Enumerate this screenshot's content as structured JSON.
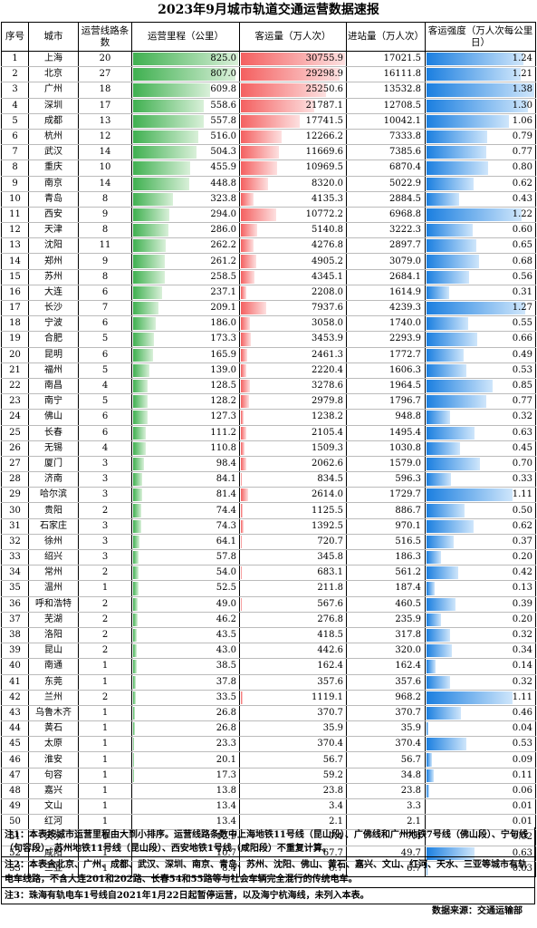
{
  "title": "2023年9月城市轨道交通运营数据速报",
  "headers": {
    "no": "序号",
    "city": "城市",
    "lines": "运营线路条数",
    "km": "运营里程（公里）",
    "passengers": "客运量（万人次）",
    "entries": "进站量（万人次）",
    "intensity": "客运强度（万人次每公里日）"
  },
  "colors": {
    "mileage_bar": "#3fb050",
    "passenger_bar": "#f46060",
    "intensity_bar": "#1b7fe0"
  },
  "rows": [
    [
      "1",
      "上海",
      "20",
      "825.0",
      "30755.9",
      "17021.5",
      "1.24"
    ],
    [
      "2",
      "北京",
      "27",
      "807.0",
      "29298.9",
      "16111.8",
      "1.21"
    ],
    [
      "3",
      "广州",
      "18",
      "609.8",
      "25250.6",
      "13532.8",
      "1.38"
    ],
    [
      "4",
      "深圳",
      "17",
      "558.6",
      "21787.1",
      "12708.5",
      "1.30"
    ],
    [
      "5",
      "成都",
      "13",
      "557.8",
      "17741.5",
      "10042.1",
      "1.06"
    ],
    [
      "6",
      "杭州",
      "12",
      "516.0",
      "12266.2",
      "7333.8",
      "0.79"
    ],
    [
      "7",
      "武汉",
      "14",
      "504.3",
      "11669.6",
      "7385.6",
      "0.77"
    ],
    [
      "8",
      "重庆",
      "10",
      "455.9",
      "10969.5",
      "6870.4",
      "0.80"
    ],
    [
      "9",
      "南京",
      "14",
      "448.8",
      "8320.0",
      "5022.9",
      "0.62"
    ],
    [
      "10",
      "青岛",
      "8",
      "323.8",
      "4135.3",
      "2884.5",
      "0.43"
    ],
    [
      "11",
      "西安",
      "9",
      "294.0",
      "10772.2",
      "6968.8",
      "1.22"
    ],
    [
      "12",
      "天津",
      "8",
      "286.0",
      "5140.8",
      "3222.3",
      "0.60"
    ],
    [
      "13",
      "沈阳",
      "11",
      "262.2",
      "4276.8",
      "2897.7",
      "0.65"
    ],
    [
      "14",
      "郑州",
      "9",
      "261.2",
      "4905.2",
      "3079.0",
      "0.68"
    ],
    [
      "15",
      "苏州",
      "8",
      "258.5",
      "4345.1",
      "2684.1",
      "0.56"
    ],
    [
      "16",
      "大连",
      "6",
      "237.1",
      "2208.0",
      "1614.9",
      "0.31"
    ],
    [
      "17",
      "长沙",
      "7",
      "209.1",
      "7937.6",
      "4239.3",
      "1.27"
    ],
    [
      "18",
      "宁波",
      "6",
      "186.0",
      "3058.0",
      "1740.0",
      "0.55"
    ],
    [
      "19",
      "合肥",
      "5",
      "173.3",
      "3453.9",
      "2293.9",
      "0.66"
    ],
    [
      "20",
      "昆明",
      "6",
      "165.9",
      "2461.3",
      "1772.7",
      "0.49"
    ],
    [
      "21",
      "福州",
      "5",
      "139.0",
      "2220.4",
      "1606.3",
      "0.53"
    ],
    [
      "22",
      "南昌",
      "4",
      "128.5",
      "3278.6",
      "1964.5",
      "0.85"
    ],
    [
      "23",
      "南宁",
      "5",
      "128.2",
      "2979.8",
      "1796.7",
      "0.77"
    ],
    [
      "24",
      "佛山",
      "6",
      "127.3",
      "1238.2",
      "948.8",
      "0.32"
    ],
    [
      "25",
      "长春",
      "6",
      "111.2",
      "2105.4",
      "1495.4",
      "0.63"
    ],
    [
      "26",
      "无锡",
      "4",
      "110.8",
      "1509.3",
      "1030.8",
      "0.45"
    ],
    [
      "27",
      "厦门",
      "3",
      "98.4",
      "2062.6",
      "1579.0",
      "0.70"
    ],
    [
      "28",
      "济南",
      "3",
      "84.1",
      "834.5",
      "596.3",
      "0.33"
    ],
    [
      "29",
      "哈尔滨",
      "3",
      "81.4",
      "2614.0",
      "1729.7",
      "1.11"
    ],
    [
      "30",
      "贵阳",
      "2",
      "74.4",
      "1125.5",
      "886.7",
      "0.50"
    ],
    [
      "31",
      "石家庄",
      "3",
      "74.3",
      "1392.5",
      "970.1",
      "0.62"
    ],
    [
      "32",
      "徐州",
      "3",
      "64.1",
      "720.7",
      "516.5",
      "0.37"
    ],
    [
      "33",
      "绍兴",
      "3",
      "57.8",
      "345.8",
      "186.3",
      "0.20"
    ],
    [
      "34",
      "常州",
      "2",
      "54.0",
      "683.1",
      "561.2",
      "0.42"
    ],
    [
      "35",
      "温州",
      "1",
      "52.5",
      "211.8",
      "187.4",
      "0.13"
    ],
    [
      "36",
      "呼和浩特",
      "2",
      "49.0",
      "567.6",
      "460.5",
      "0.39"
    ],
    [
      "37",
      "芜湖",
      "2",
      "46.2",
      "276.8",
      "235.9",
      "0.20"
    ],
    [
      "38",
      "洛阳",
      "2",
      "43.5",
      "418.5",
      "317.8",
      "0.32"
    ],
    [
      "39",
      "昆山",
      "2",
      "43.0",
      "442.6",
      "320.0",
      "0.34"
    ],
    [
      "40",
      "南通",
      "1",
      "38.5",
      "162.4",
      "162.4",
      "0.14"
    ],
    [
      "41",
      "东莞",
      "1",
      "37.8",
      "357.6",
      "357.6",
      "0.32"
    ],
    [
      "42",
      "兰州",
      "2",
      "33.5",
      "1119.1",
      "968.2",
      "1.11"
    ],
    [
      "43",
      "乌鲁木齐",
      "1",
      "26.8",
      "370.7",
      "370.7",
      "0.46"
    ],
    [
      "44",
      "黄石",
      "1",
      "26.8",
      "35.9",
      "35.9",
      "0.04"
    ],
    [
      "45",
      "太原",
      "1",
      "23.3",
      "370.4",
      "370.4",
      "0.53"
    ],
    [
      "46",
      "淮安",
      "1",
      "20.1",
      "56.7",
      "56.7",
      "0.09"
    ],
    [
      "47",
      "句容",
      "1",
      "17.3",
      "59.2",
      "34.8",
      "0.11"
    ],
    [
      "48",
      "嘉兴",
      "1",
      "13.8",
      "23.8",
      "23.8",
      "0.06"
    ],
    [
      "49",
      "文山",
      "1",
      "13.4",
      "3.4",
      "3.3",
      "0.01"
    ],
    [
      "50",
      "红河",
      "1",
      "13.4",
      "2.1",
      "2.1",
      "0.01"
    ],
    [
      "51",
      "天水",
      "1",
      "12.9",
      "7.4",
      "7.4",
      "0.02"
    ],
    [
      "52",
      "咸阳",
      "1",
      "10.7",
      "67.7",
      "49.7",
      "0.63"
    ],
    [
      "53",
      "三亚",
      "1",
      "8.4",
      "6.7",
      "6.7",
      "0.03"
    ]
  ],
  "notes": {
    "note1": "注1：本表按城市运营里程由大到小排序。运营线路条数中上海地铁11号线（昆山段）、广佛线和广州地铁7号线（佛山段）、宁句线（句容段）、苏州地铁11号线（昆山段）、西安地铁1号线（咸阳段）不重复计算。",
    "note2": "注2：本表含北京、广州、成都、武汉、深圳、南京、青岛、苏州、沈阳、佛山、黄石、嘉兴、文山、红河、天水、三亚等城市有轨电车线路，不含大连201和202路、长春54和55路等与社会车辆完全混行的传统电车。",
    "note3": "注3：珠海有轨电车1号线自2021年1月22日起暂停运营，以及海宁杭海线，未列入本表。",
    "source": "数据来源：交通运输部"
  }
}
